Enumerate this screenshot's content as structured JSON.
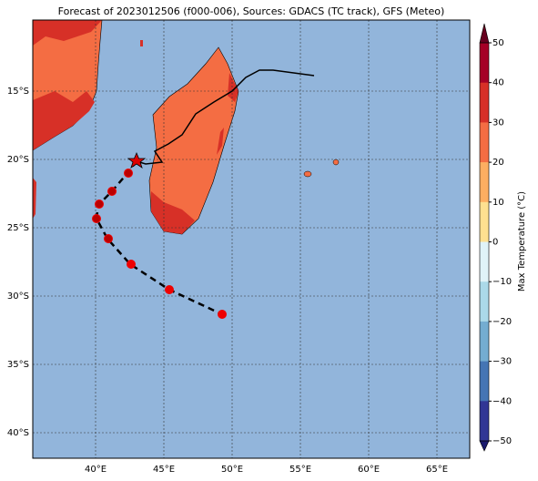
{
  "title": "Forecast of 2023012506 (f000-006), Sources: GDACS (TC track), GFS (Meteo)",
  "map": {
    "lon_labels": [
      "40°E",
      "45°E",
      "50°E",
      "55°E",
      "60°E",
      "65°E"
    ],
    "lat_labels": [
      "15°S",
      "20°S",
      "25°S",
      "30°S",
      "35°S",
      "40°S"
    ]
  },
  "colorbar": {
    "label": "Max Temperature (°C)",
    "tick_labels": [
      "50",
      "40",
      "30",
      "20",
      "10",
      "0",
      "−10",
      "−20",
      "−30",
      "−40",
      "−50"
    ]
  }
}
